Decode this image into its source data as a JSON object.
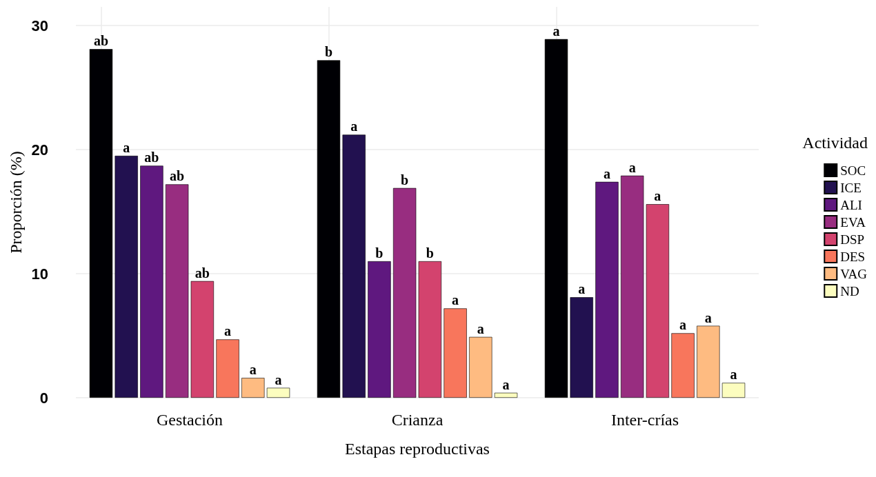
{
  "chart_data": {
    "type": "bar",
    "xlabel": "Estapas reproductivas",
    "ylabel": "Proporción (%)",
    "legend_title": "Actividad",
    "categories": [
      "Gestación",
      "Crianza",
      "Inter-crías"
    ],
    "series": [
      {
        "name": "SOC",
        "color": "#000004",
        "values": [
          28.1,
          27.2,
          28.9
        ],
        "value_labels": [
          "ab",
          "b",
          "a"
        ]
      },
      {
        "name": "ICE",
        "color": "#221150",
        "values": [
          19.5,
          21.2,
          8.1
        ],
        "value_labels": [
          "a",
          "a",
          "a"
        ]
      },
      {
        "name": "ALI",
        "color": "#5f187f",
        "values": [
          18.7,
          11.0,
          17.4
        ],
        "value_labels": [
          "ab",
          "b",
          "a"
        ]
      },
      {
        "name": "EVA",
        "color": "#982d80",
        "values": [
          17.2,
          16.9,
          17.9
        ],
        "value_labels": [
          "ab",
          "b",
          "a"
        ]
      },
      {
        "name": "DSP",
        "color": "#d3436e",
        "values": [
          9.4,
          11.0,
          15.6
        ],
        "value_labels": [
          "ab",
          "b",
          "a"
        ]
      },
      {
        "name": "DES",
        "color": "#f8765c",
        "values": [
          4.7,
          7.2,
          5.2
        ],
        "value_labels": [
          "a",
          "a",
          "a"
        ]
      },
      {
        "name": "VAG",
        "color": "#febb81",
        "values": [
          1.6,
          4.9,
          5.8
        ],
        "value_labels": [
          "a",
          "a",
          "a"
        ]
      },
      {
        "name": "ND",
        "color": "#fcfdbf",
        "values": [
          0.8,
          0.4,
          1.2
        ],
        "value_labels": [
          "a",
          "a",
          "a"
        ]
      }
    ],
    "ylim": [
      0,
      31.5
    ],
    "yticks": [
      0,
      10,
      20,
      30
    ],
    "grid": true,
    "legend": "right"
  }
}
